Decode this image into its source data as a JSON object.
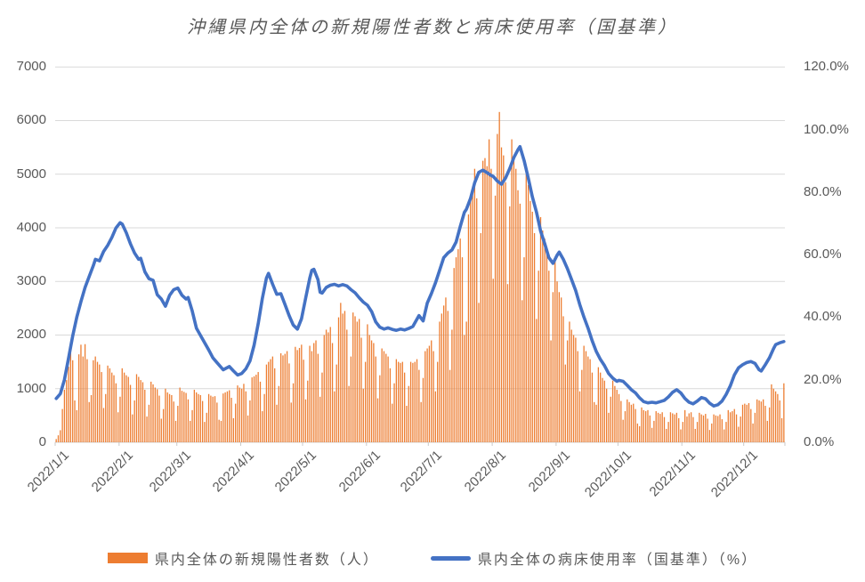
{
  "title": "沖縄県内全体の新規陽性者数と病床使用率（国基準）",
  "colors": {
    "bar": "#ED7D31",
    "line": "#4472C4",
    "text": "#595959",
    "grid": "#D9D9D9",
    "axis": "#D0D0D0",
    "tick": "#C9C9C9",
    "background": "#FFFFFF"
  },
  "legend": {
    "items": [
      {
        "label": "県内全体の新規陽性者数（人）",
        "color": "#ED7D31",
        "type": "bar"
      },
      {
        "label": "県内全体の病床使用率（国基準）（%）",
        "color": "#4472C4",
        "type": "line"
      }
    ]
  },
  "chart_data": {
    "type": "combo-bar-line",
    "title": "沖縄県内全体の新規陽性者数と病床使用率（国基準）",
    "x_unit": "day",
    "start_label": "2022/1/1",
    "days_total": 354,
    "grid": true,
    "month_labels": [
      "2022/1/1",
      "2022/2/1",
      "2022/3/1",
      "2022/4/1",
      "2022/5/1",
      "2022/6/1",
      "2022/7/1",
      "2022/8/1",
      "2022/9/1",
      "2022/10/1",
      "2022/11/1",
      "2022/12/1"
    ],
    "month_day_offsets": [
      0,
      31,
      59,
      90,
      120,
      151,
      181,
      212,
      243,
      273,
      304,
      334
    ],
    "left_axis": {
      "min": 0,
      "max": 7000,
      "step": 1000,
      "labels": [
        "0",
        "1000",
        "2000",
        "3000",
        "4000",
        "5000",
        "6000",
        "7000"
      ]
    },
    "right_axis": {
      "min": 0,
      "max": 120,
      "step": 20,
      "labels": [
        "0.0%",
        "20.0%",
        "40.0%",
        "60.0%",
        "80.0%",
        "100.0%",
        "120.0%"
      ]
    },
    "bar_series": {
      "name": "県内全体の新規陽性者数（人）",
      "axis": "left",
      "color": "#ED7D31",
      "values": [
        60,
        130,
        225,
        620,
        980,
        1160,
        1410,
        1760,
        1530,
        780,
        600,
        1640,
        1820,
        1600,
        1830,
        1550,
        750,
        880,
        1530,
        1600,
        1500,
        1450,
        1310,
        640,
        900,
        1430,
        1380,
        1300,
        1250,
        1100,
        560,
        850,
        1380,
        1300,
        1250,
        1220,
        1070,
        520,
        780,
        1270,
        1220,
        1160,
        1120,
        980,
        480,
        700,
        1130,
        1080,
        1020,
        990,
        870,
        440,
        620,
        1000,
        930,
        900,
        880,
        760,
        400,
        680,
        1020,
        960,
        940,
        920,
        800,
        400,
        600,
        980,
        930,
        900,
        880,
        770,
        380,
        550,
        900,
        870,
        850,
        860,
        740,
        420,
        400,
        910,
        930,
        950,
        970,
        830,
        450,
        720,
        1060,
        1020,
        1000,
        1090,
        950,
        500,
        780,
        1210,
        1230,
        1260,
        1310,
        1130,
        580,
        900,
        1450,
        1500,
        1550,
        1600,
        1380,
        700,
        1050,
        1660,
        1620,
        1650,
        1700,
        1470,
        740,
        1100,
        1780,
        1720,
        1760,
        1820,
        1540,
        800,
        1150,
        1800,
        1700,
        1850,
        1900,
        1650,
        850,
        1300,
        2000,
        2100,
        2050,
        2150,
        1850,
        950,
        1450,
        2330,
        2600,
        2400,
        2450,
        2100,
        1050,
        1600,
        2420,
        2350,
        2250,
        2300,
        1950,
        1000,
        1500,
        2200,
        2000,
        1900,
        1850,
        1600,
        820,
        1250,
        1750,
        1700,
        1650,
        1600,
        1380,
        720,
        1100,
        1550,
        1500,
        1480,
        1500,
        1300,
        680,
        1050,
        1500,
        1480,
        1500,
        1550,
        1350,
        750,
        1200,
        1700,
        1750,
        1800,
        1900,
        1700,
        950,
        1500,
        2250,
        2400,
        2550,
        2700,
        2450,
        1350,
        2100,
        3250,
        3450,
        3600,
        3800,
        3450,
        2000,
        2250,
        4250,
        4500,
        4700,
        5100,
        4550,
        2600,
        3900,
        5250,
        5300,
        5150,
        5650,
        5100,
        3050,
        4600,
        5750,
        6160,
        5500,
        5350,
        4850,
        2950,
        4400,
        5650,
        5300,
        5100,
        4700,
        4450,
        2650,
        3450,
        5000,
        4800,
        4500,
        4300,
        3900,
        2300,
        3200,
        4200,
        3950,
        3800,
        3600,
        3200,
        1900,
        2800,
        3450,
        3000,
        2800,
        2700,
        2350,
        1450,
        1900,
        2250,
        2100,
        2000,
        1950,
        1700,
        950,
        1350,
        1800,
        1700,
        1600,
        1550,
        1300,
        750,
        700,
        1400,
        1300,
        1200,
        1150,
        1000,
        550,
        850,
        1150,
        1050,
        980,
        900,
        770,
        420,
        580,
        800,
        750,
        700,
        720,
        620,
        350,
        300,
        650,
        600,
        580,
        600,
        500,
        270,
        400,
        580,
        550,
        530,
        560,
        470,
        250,
        380,
        560,
        540,
        520,
        550,
        450,
        240,
        380,
        600,
        480,
        540,
        560,
        470,
        250,
        380,
        550,
        520,
        500,
        530,
        440,
        230,
        350,
        520,
        500,
        490,
        520,
        430,
        240,
        380,
        600,
        560,
        580,
        620,
        520,
        290,
        480,
        700,
        720,
        700,
        730,
        620,
        350,
        550,
        800,
        780,
        760,
        800,
        680,
        400,
        650,
        1080,
        1000,
        950,
        900,
        780,
        450,
        1100
      ]
    },
    "line_series": {
      "name": "県内全体の病床使用率（国基準）（%）",
      "axis": "right",
      "color": "#4472C4",
      "points": [
        [
          0,
          14
        ],
        [
          2,
          15.5
        ],
        [
          4,
          20
        ],
        [
          6,
          27
        ],
        [
          8,
          34
        ],
        [
          10,
          40
        ],
        [
          12,
          45
        ],
        [
          14,
          49.5
        ],
        [
          16,
          53
        ],
        [
          18,
          56.5
        ],
        [
          19,
          58.5
        ],
        [
          21,
          58
        ],
        [
          23,
          61
        ],
        [
          25,
          63
        ],
        [
          27,
          65.5
        ],
        [
          29,
          68.5
        ],
        [
          31,
          70.2
        ],
        [
          32,
          69.8
        ],
        [
          34,
          67
        ],
        [
          36,
          63.5
        ],
        [
          38,
          60.5
        ],
        [
          40,
          58.5
        ],
        [
          41,
          58.8
        ],
        [
          43,
          54.5
        ],
        [
          45,
          52.3
        ],
        [
          47,
          51.8
        ],
        [
          49,
          47.2
        ],
        [
          51,
          45.8
        ],
        [
          53,
          43.5
        ],
        [
          55,
          47
        ],
        [
          57,
          48.8
        ],
        [
          59,
          49.3
        ],
        [
          61,
          47
        ],
        [
          63,
          45.8
        ],
        [
          64,
          46.3
        ],
        [
          66,
          42
        ],
        [
          68,
          36.5
        ],
        [
          71,
          33
        ],
        [
          74,
          29.5
        ],
        [
          76,
          27
        ],
        [
          78,
          25.5
        ],
        [
          81,
          23.2
        ],
        [
          84,
          24.2
        ],
        [
          86,
          22.8
        ],
        [
          88,
          21.5
        ],
        [
          90,
          22
        ],
        [
          92,
          23.5
        ],
        [
          94,
          26
        ],
        [
          96,
          31
        ],
        [
          98,
          38
        ],
        [
          100,
          46
        ],
        [
          102,
          52.5
        ],
        [
          103,
          54
        ],
        [
          105,
          50.5
        ],
        [
          107,
          47.3
        ],
        [
          109,
          47.5
        ],
        [
          111,
          44
        ],
        [
          113,
          40.5
        ],
        [
          115,
          37.5
        ],
        [
          117,
          36.2
        ],
        [
          119,
          39.5
        ],
        [
          121,
          46
        ],
        [
          123,
          52.5
        ],
        [
          124,
          55
        ],
        [
          125,
          55.3
        ],
        [
          127,
          52
        ],
        [
          128,
          48
        ],
        [
          129,
          47.7
        ],
        [
          131,
          49.5
        ],
        [
          133,
          50.2
        ],
        [
          135,
          50.5
        ],
        [
          137,
          50
        ],
        [
          139,
          50.4
        ],
        [
          141,
          50
        ],
        [
          143,
          48.8
        ],
        [
          145,
          47.8
        ],
        [
          147,
          46.2
        ],
        [
          149,
          44.8
        ],
        [
          151,
          43.8
        ],
        [
          153,
          41.8
        ],
        [
          155,
          38.5
        ],
        [
          157,
          36.8
        ],
        [
          159,
          36.2
        ],
        [
          161,
          36.6
        ],
        [
          163,
          36.1
        ],
        [
          165,
          35.8
        ],
        [
          167,
          36.2
        ],
        [
          169,
          35.9
        ],
        [
          171,
          36.4
        ],
        [
          173,
          37
        ],
        [
          176,
          40.5
        ],
        [
          178,
          38.8
        ],
        [
          180,
          44.5
        ],
        [
          182,
          47.5
        ],
        [
          184,
          51
        ],
        [
          186,
          55
        ],
        [
          188,
          59
        ],
        [
          190,
          60.5
        ],
        [
          192,
          61.5
        ],
        [
          194,
          64
        ],
        [
          196,
          69
        ],
        [
          198,
          73.5
        ],
        [
          199,
          74.5
        ],
        [
          201,
          78
        ],
        [
          203,
          83
        ],
        [
          205,
          86.3
        ],
        [
          207,
          87
        ],
        [
          209,
          86.2
        ],
        [
          211,
          85.3
        ],
        [
          212,
          85
        ],
        [
          214,
          83.5
        ],
        [
          216,
          82.5
        ],
        [
          218,
          84.5
        ],
        [
          220,
          87.5
        ],
        [
          222,
          91
        ],
        [
          224,
          93.5
        ],
        [
          225,
          94.5
        ],
        [
          227,
          90
        ],
        [
          229,
          84.5
        ],
        [
          231,
          78.5
        ],
        [
          233,
          73.5
        ],
        [
          235,
          67.5
        ],
        [
          237,
          63.5
        ],
        [
          239,
          59
        ],
        [
          241,
          57.2
        ],
        [
          243,
          59.8
        ],
        [
          244,
          60.8
        ],
        [
          246,
          58.5
        ],
        [
          248,
          55.5
        ],
        [
          250,
          52
        ],
        [
          252,
          48.5
        ],
        [
          254,
          44
        ],
        [
          256,
          40
        ],
        [
          258,
          36.5
        ],
        [
          260,
          32.5
        ],
        [
          262,
          29
        ],
        [
          264,
          26.5
        ],
        [
          266,
          24.5
        ],
        [
          268,
          22
        ],
        [
          270,
          20.5
        ],
        [
          272,
          19.5
        ],
        [
          273,
          19.8
        ],
        [
          275,
          19.5
        ],
        [
          277,
          18.2
        ],
        [
          279,
          16.8
        ],
        [
          281,
          15.8
        ],
        [
          283,
          14.2
        ],
        [
          285,
          13
        ],
        [
          287,
          12.6
        ],
        [
          289,
          12.8
        ],
        [
          291,
          12.6
        ],
        [
          293,
          13
        ],
        [
          295,
          13.4
        ],
        [
          297,
          14.5
        ],
        [
          299,
          16
        ],
        [
          301,
          16.8
        ],
        [
          303,
          15.8
        ],
        [
          305,
          14
        ],
        [
          307,
          12.8
        ],
        [
          309,
          12.3
        ],
        [
          311,
          13.2
        ],
        [
          313,
          14.3
        ],
        [
          315,
          13.9
        ],
        [
          317,
          12.5
        ],
        [
          319,
          11.6
        ],
        [
          321,
          12
        ],
        [
          323,
          13.2
        ],
        [
          325,
          15.3
        ],
        [
          327,
          18
        ],
        [
          329,
          21.5
        ],
        [
          331,
          23.8
        ],
        [
          333,
          24.8
        ],
        [
          335,
          25.5
        ],
        [
          337,
          25.8
        ],
        [
          339,
          25.2
        ],
        [
          341,
          23.2
        ],
        [
          342,
          22.8
        ],
        [
          344,
          24.8
        ],
        [
          346,
          27
        ],
        [
          348,
          30
        ],
        [
          349,
          31.2
        ],
        [
          351,
          31.8
        ],
        [
          353,
          32.2
        ]
      ]
    }
  }
}
